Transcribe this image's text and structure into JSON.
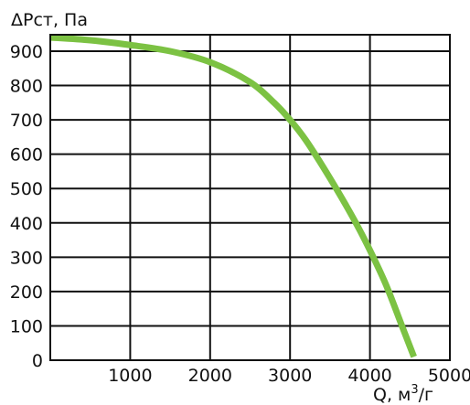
{
  "chart_data": {
    "type": "line",
    "ylabel": "ΔPст, Па",
    "xlabel_main": "Q, м",
    "xlabel_sup": "3",
    "xlabel_tail": "/г",
    "xlim": [
      0,
      5000
    ],
    "ylim": [
      0,
      950
    ],
    "grid": true,
    "x_ticks": [
      0,
      1000,
      2000,
      3000,
      4000,
      5000
    ],
    "x_tick_labels": [
      "",
      "1000",
      "2000",
      "3000",
      "4000",
      "5000"
    ],
    "y_ticks": [
      0,
      100,
      200,
      300,
      400,
      500,
      600,
      700,
      800,
      900
    ],
    "y_tick_labels": [
      "0",
      "100",
      "200",
      "300",
      "400",
      "500",
      "600",
      "700",
      "800",
      "900"
    ],
    "series": [
      {
        "color": "#7cc243",
        "points": [
          [
            0,
            940
          ],
          [
            500,
            932
          ],
          [
            1000,
            918
          ],
          [
            1500,
            900
          ],
          [
            2000,
            868
          ],
          [
            2500,
            810
          ],
          [
            2800,
            750
          ],
          [
            3000,
            700
          ],
          [
            3200,
            640
          ],
          [
            3500,
            530
          ],
          [
            3800,
            410
          ],
          [
            4000,
            320
          ],
          [
            4200,
            220
          ],
          [
            4400,
            100
          ],
          [
            4550,
            10
          ]
        ]
      }
    ]
  }
}
